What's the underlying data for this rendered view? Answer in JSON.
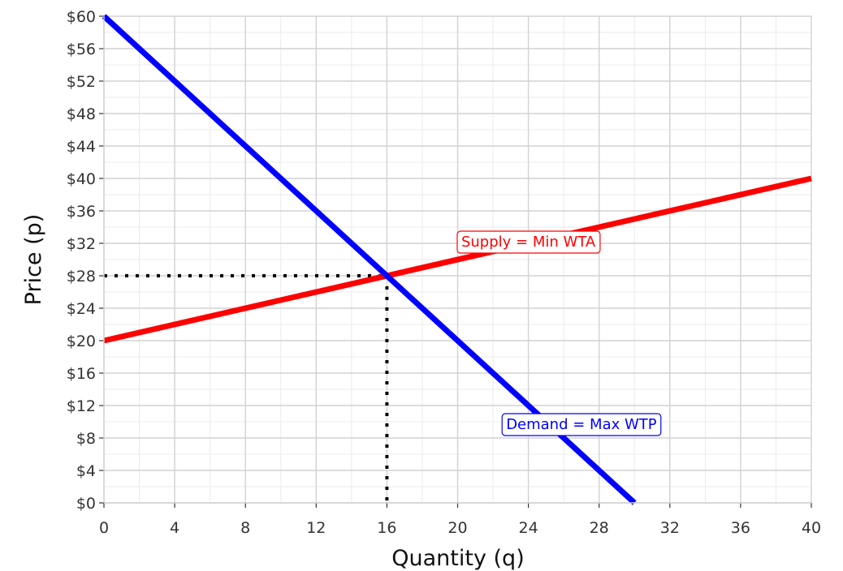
{
  "chart_data": {
    "type": "line",
    "title": "",
    "xlabel": "Quantity (q)",
    "ylabel": "Price (p)",
    "xlim": [
      0,
      40
    ],
    "ylim": [
      0,
      60
    ],
    "x_ticks": [
      "0",
      "4",
      "8",
      "12",
      "16",
      "20",
      "24",
      "28",
      "32",
      "36",
      "40"
    ],
    "y_ticks": [
      "$0",
      "$4",
      "$8",
      "$12",
      "$16",
      "$20",
      "$24",
      "$28",
      "$32",
      "$36",
      "$40",
      "$44",
      "$48",
      "$52",
      "$56",
      "$60"
    ],
    "grid": true,
    "series": [
      {
        "name": "Supply = Min WTA",
        "color": "#ff0000",
        "points": [
          [
            0,
            20
          ],
          [
            40,
            40
          ]
        ]
      },
      {
        "name": "Demand = Max WTP",
        "color": "#0000ff",
        "points": [
          [
            0,
            60
          ],
          [
            30,
            0
          ]
        ]
      }
    ],
    "equilibrium": {
      "q": 16,
      "p": 28,
      "style": "dotted",
      "color": "#000000"
    },
    "labels": [
      {
        "text": "Supply = Min WTA",
        "color": "#ff0000",
        "x": 24,
        "y": 32.2
      },
      {
        "text": "Demand = Max WTP",
        "color": "#0000ff",
        "x": 27,
        "y": 9.7
      }
    ]
  }
}
